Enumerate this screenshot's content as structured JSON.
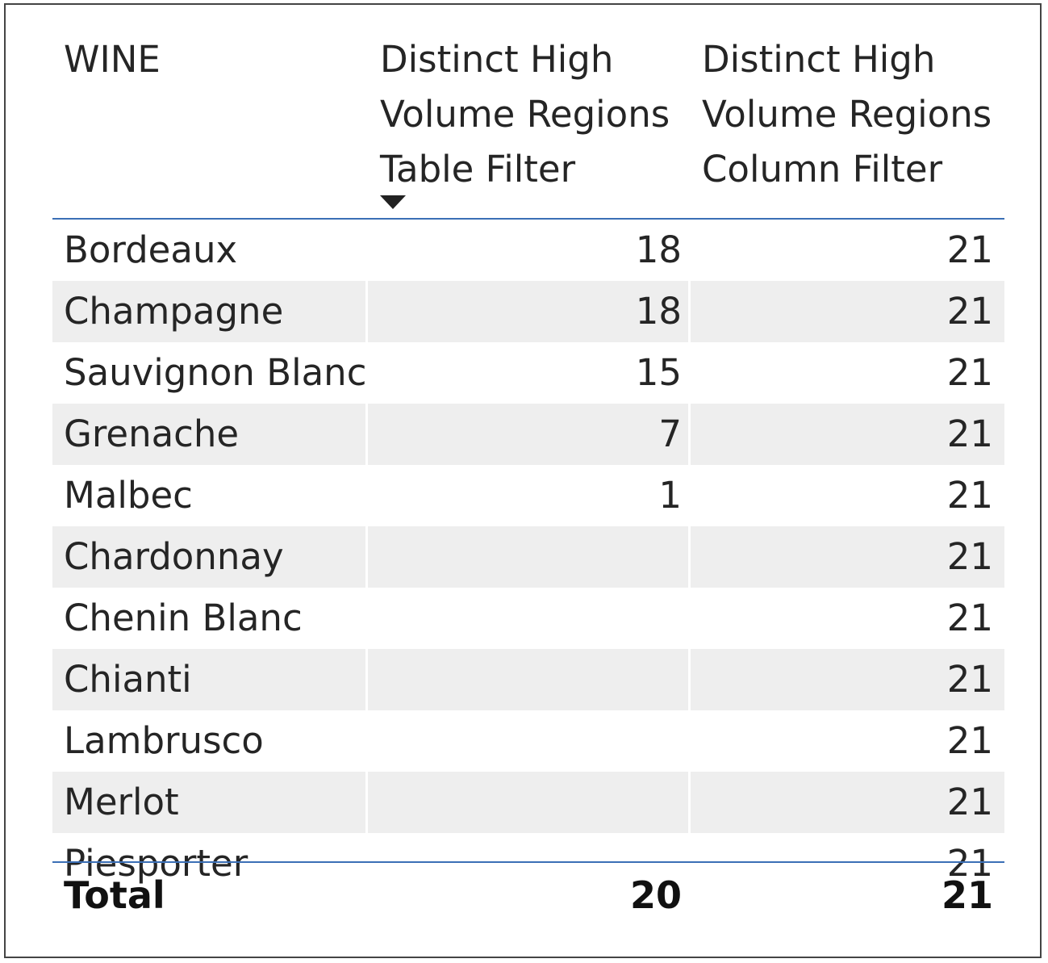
{
  "table": {
    "headers": {
      "wine": "WINE",
      "col1": [
        "Distinct High",
        "Volume Regions",
        "Table Filter"
      ],
      "col2": [
        "Distinct High",
        "Volume Regions",
        "Column Filter"
      ]
    },
    "sort_icon": "sort-descending-icon",
    "rows": [
      {
        "wine": "Bordeaux",
        "col1": "18",
        "col2": "21"
      },
      {
        "wine": "Champagne",
        "col1": "18",
        "col2": "21"
      },
      {
        "wine": "Sauvignon Blanc",
        "col1": "15",
        "col2": "21"
      },
      {
        "wine": "Grenache",
        "col1": "7",
        "col2": "21"
      },
      {
        "wine": "Malbec",
        "col1": "1",
        "col2": "21"
      },
      {
        "wine": "Chardonnay",
        "col1": "",
        "col2": "21"
      },
      {
        "wine": "Chenin Blanc",
        "col1": "",
        "col2": "21"
      },
      {
        "wine": "Chianti",
        "col1": "",
        "col2": "21"
      },
      {
        "wine": "Lambrusco",
        "col1": "",
        "col2": "21"
      },
      {
        "wine": "Merlot",
        "col1": "",
        "col2": "21"
      },
      {
        "wine": "Piesporter",
        "col1": "",
        "col2": "21"
      }
    ],
    "total": {
      "label": "Total",
      "col1": "20",
      "col2": "21"
    },
    "colors": {
      "row_alt": "#eeeeee",
      "accent_border": "#3b6fb6",
      "frame_border": "#444444"
    }
  }
}
